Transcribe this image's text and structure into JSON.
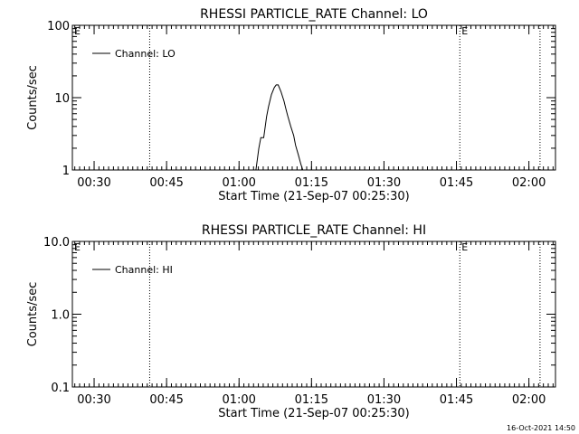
{
  "chart_data": [
    {
      "type": "line",
      "title": "RHESSI PARTICLE_RATE Channel: LO",
      "xlabel": "Start Time (21-Sep-07 00:25:30)",
      "ylabel": "Counts/sec",
      "yscale": "log",
      "ylim": [
        1,
        100
      ],
      "y_ticks": [
        "1",
        "10",
        "100"
      ],
      "x_unit": "minutes after 00:25:30",
      "xlim": [
        0,
        100
      ],
      "x_ticks": [
        {
          "label": "00:30",
          "x": 4.5
        },
        {
          "label": "00:45",
          "x": 19.5
        },
        {
          "label": "01:00",
          "x": 34.5
        },
        {
          "label": "01:15",
          "x": 49.5
        },
        {
          "label": "01:30",
          "x": 64.5
        },
        {
          "label": "01:45",
          "x": 79.5
        },
        {
          "label": "02:00",
          "x": 94.5
        }
      ],
      "grid": false,
      "legend_position": "top-left",
      "series": [
        {
          "name": "Channel: LO",
          "color": "#000000",
          "x": [
            38.0,
            38.6,
            39.0,
            39.6,
            40.2,
            40.6,
            41.2,
            41.8,
            42.2,
            42.6,
            43.2,
            43.8,
            44.2,
            44.6,
            45.2,
            45.8,
            46.2,
            46.8,
            47.3,
            47.7
          ],
          "y": [
            1.0,
            2.0,
            2.8,
            2.8,
            5.5,
            7.5,
            11.0,
            13.8,
            15.0,
            15.0,
            12.0,
            9.0,
            7.0,
            5.5,
            4.0,
            3.0,
            2.2,
            1.6,
            1.2,
            1.0
          ]
        }
      ],
      "vlines": [
        {
          "x": 16.0,
          "label": ""
        },
        {
          "x": 80.2,
          "label": "E"
        },
        {
          "x": 96.8,
          "label": ""
        }
      ],
      "corner_label": "E"
    },
    {
      "type": "line",
      "title": "RHESSI PARTICLE_RATE Channel: HI",
      "xlabel": "Start Time (21-Sep-07 00:25:30)",
      "ylabel": "Counts/sec",
      "yscale": "log",
      "ylim": [
        0.1,
        10
      ],
      "y_ticks": [
        "0.1",
        "1.0",
        "10.0"
      ],
      "x_unit": "minutes after 00:25:30",
      "xlim": [
        0,
        100
      ],
      "x_ticks": [
        {
          "label": "00:30",
          "x": 4.5
        },
        {
          "label": "00:45",
          "x": 19.5
        },
        {
          "label": "01:00",
          "x": 34.5
        },
        {
          "label": "01:15",
          "x": 49.5
        },
        {
          "label": "01:30",
          "x": 64.5
        },
        {
          "label": "01:45",
          "x": 79.5
        },
        {
          "label": "02:00",
          "x": 94.5
        }
      ],
      "grid": false,
      "legend_position": "top-left",
      "series": [
        {
          "name": "Channel: HI",
          "color": "#000000",
          "x": [],
          "y": []
        }
      ],
      "vlines": [
        {
          "x": 16.0,
          "label": ""
        },
        {
          "x": 80.2,
          "label": "E"
        },
        {
          "x": 96.8,
          "label": ""
        }
      ],
      "corner_label": "E"
    }
  ],
  "footer": {
    "timestamp": "16-Oct-2021 14:50"
  }
}
